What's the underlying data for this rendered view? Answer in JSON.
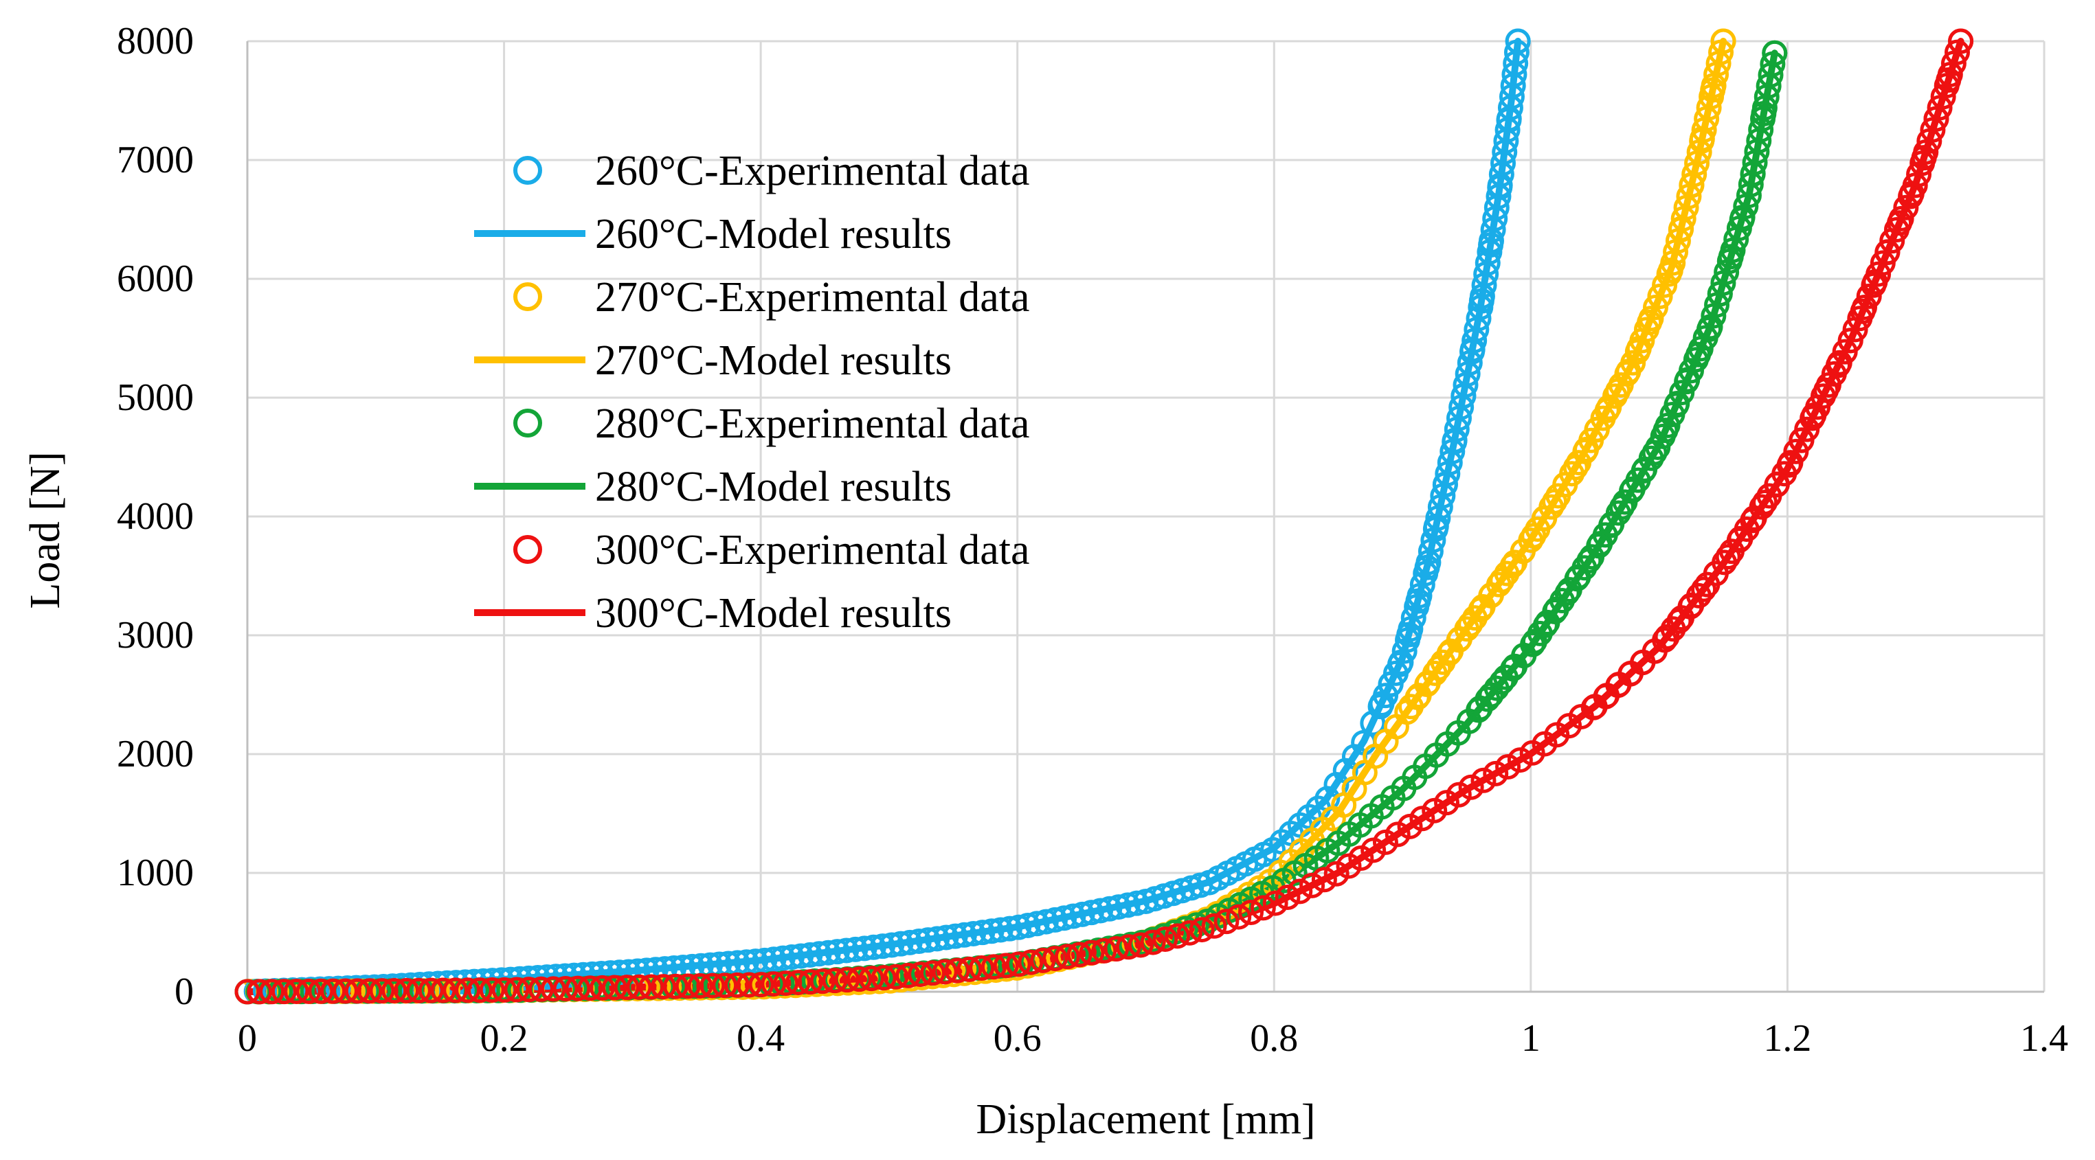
{
  "chart_data": {
    "type": "scatter",
    "title": "",
    "xlabel": "Displacement [mm]",
    "ylabel": "Load [N]",
    "xlim": [
      0,
      1.4
    ],
    "ylim": [
      0,
      8000
    ],
    "x_ticks": [
      0,
      0.2,
      0.4,
      0.6,
      0.8,
      1,
      1.2,
      1.4
    ],
    "x_tick_labels": [
      "0",
      "0.2",
      "0.4",
      "0.6",
      "0.8",
      "1",
      "1.2",
      "1.4"
    ],
    "y_ticks": [
      0,
      1000,
      2000,
      3000,
      4000,
      5000,
      6000,
      7000,
      8000
    ],
    "y_tick_labels": [
      "0",
      "1000",
      "2000",
      "3000",
      "4000",
      "5000",
      "6000",
      "7000",
      "8000"
    ],
    "grid": true,
    "legend_position": "upper-left",
    "series": [
      {
        "name": "260°C-Experimental data",
        "kind": "markers",
        "color": "#1AACE8",
        "x": [
          0,
          0.1,
          0.2,
          0.3,
          0.4,
          0.5,
          0.6,
          0.7,
          0.75,
          0.8,
          0.84,
          0.87,
          0.9,
          0.92,
          0.94,
          0.96,
          0.975,
          0.985,
          0.99
        ],
        "y": [
          0,
          40,
          100,
          170,
          260,
          390,
          540,
          760,
          920,
          1200,
          1600,
          2100,
          2800,
          3600,
          4600,
          5700,
          6700,
          7500,
          8000
        ]
      },
      {
        "name": "260°C-Model results",
        "kind": "line",
        "color": "#1AACE8",
        "x": [
          0,
          0.1,
          0.2,
          0.3,
          0.4,
          0.5,
          0.6,
          0.7,
          0.75,
          0.8,
          0.84,
          0.87,
          0.9,
          0.92,
          0.94,
          0.96,
          0.975,
          0.985,
          0.99
        ],
        "y": [
          0,
          45,
          105,
          175,
          265,
          395,
          545,
          765,
          925,
          1210,
          1610,
          2110,
          2810,
          3610,
          4610,
          5710,
          6710,
          7510,
          8000
        ]
      },
      {
        "name": "270°C-Experimental data",
        "kind": "markers",
        "color": "#FFC000",
        "x": [
          0,
          0.2,
          0.4,
          0.5,
          0.6,
          0.7,
          0.75,
          0.8,
          0.85,
          0.88,
          0.92,
          0.96,
          1.0,
          1.04,
          1.08,
          1.11,
          1.13,
          1.15
        ],
        "y": [
          0,
          10,
          40,
          90,
          200,
          420,
          620,
          950,
          1500,
          2000,
          2600,
          3200,
          3800,
          4500,
          5300,
          6100,
          7000,
          8000
        ]
      },
      {
        "name": "270°C-Model results",
        "kind": "line",
        "color": "#FFC000",
        "x": [
          0,
          0.2,
          0.4,
          0.5,
          0.6,
          0.7,
          0.75,
          0.8,
          0.85,
          0.88,
          0.92,
          0.96,
          1.0,
          1.04,
          1.08,
          1.11,
          1.13,
          1.15
        ],
        "y": [
          80,
          15,
          45,
          95,
          205,
          425,
          625,
          955,
          1505,
          2005,
          2605,
          3205,
          3805,
          4505,
          5305,
          6105,
          7005,
          8000
        ]
      },
      {
        "name": "280°C-Experimental data",
        "kind": "markers",
        "color": "#13A538",
        "x": [
          0,
          0.2,
          0.4,
          0.5,
          0.6,
          0.7,
          0.75,
          0.8,
          0.85,
          0.9,
          0.95,
          1.0,
          1.05,
          1.1,
          1.14,
          1.17,
          1.19
        ],
        "y": [
          0,
          10,
          60,
          130,
          230,
          420,
          600,
          880,
          1250,
          1700,
          2250,
          2900,
          3700,
          4600,
          5600,
          6700,
          7900
        ]
      },
      {
        "name": "280°C-Model results",
        "kind": "line",
        "color": "#13A538",
        "x": [
          0,
          0.2,
          0.4,
          0.5,
          0.6,
          0.7,
          0.75,
          0.8,
          0.85,
          0.9,
          0.95,
          1.0,
          1.05,
          1.1,
          1.14,
          1.17,
          1.19
        ],
        "y": [
          0,
          12,
          62,
          132,
          232,
          422,
          602,
          882,
          1252,
          1702,
          2252,
          2902,
          3702,
          4602,
          5602,
          6702,
          7900
        ]
      },
      {
        "name": "300°C-Experimental data",
        "kind": "markers",
        "color": "#EE1111",
        "x": [
          0,
          0.2,
          0.4,
          0.5,
          0.6,
          0.7,
          0.75,
          0.8,
          0.85,
          0.9,
          0.95,
          1.0,
          1.05,
          1.1,
          1.15,
          1.2,
          1.25,
          1.3,
          1.335
        ],
        "y": [
          0,
          15,
          60,
          120,
          230,
          400,
          540,
          740,
          1000,
          1350,
          1700,
          2000,
          2400,
          2900,
          3600,
          4400,
          5500,
          6800,
          8000
        ]
      },
      {
        "name": "300°C-Model results",
        "kind": "line",
        "color": "#EE1111",
        "x": [
          0,
          0.2,
          0.4,
          0.5,
          0.6,
          0.7,
          0.75,
          0.8,
          0.85,
          0.9,
          0.95,
          1.0,
          1.05,
          1.1,
          1.15,
          1.2,
          1.25,
          1.3,
          1.335
        ],
        "y": [
          0,
          17,
          62,
          122,
          232,
          402,
          542,
          742,
          1002,
          1352,
          1702,
          2002,
          2402,
          2902,
          3602,
          4402,
          5502,
          6802,
          8000
        ]
      }
    ]
  }
}
